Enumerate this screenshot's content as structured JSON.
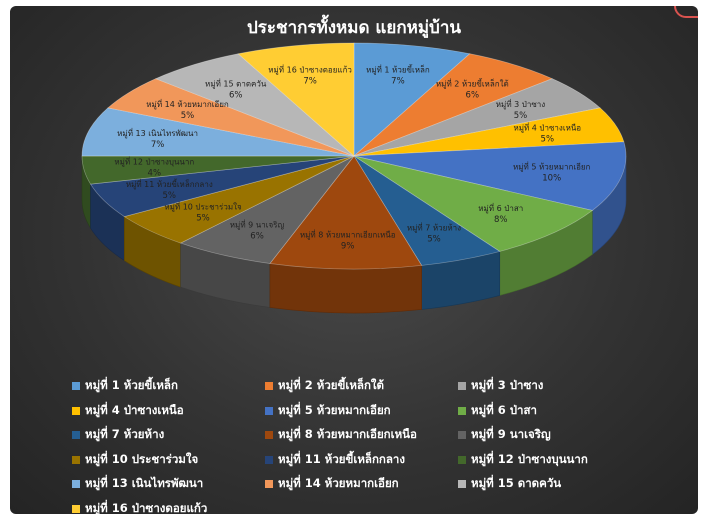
{
  "chart_data": {
    "type": "pie",
    "title": "ประชากรทั้งหมด  แยกหมู่บ้าน",
    "unit": "%",
    "legend_position": "bottom",
    "slices": [
      {
        "label": "หมู่ที่ 1 ห้วยขี้เหล็ก",
        "value": 7,
        "color": "#5b9bd5"
      },
      {
        "label": "หมู่ที่ 2 ห้วยขี้เหล็กใต้",
        "value": 6,
        "color": "#ed7d31"
      },
      {
        "label": "หมู่ที่ 3 ป่าซาง",
        "value": 5,
        "color": "#a5a5a5"
      },
      {
        "label": "หมู่ที่ 4 ป่าซางเหนือ",
        "value": 5,
        "color": "#ffc000"
      },
      {
        "label": "หมู่ที่ 5 ห้วยหมากเอียก",
        "value": 10,
        "color": "#4472c4"
      },
      {
        "label": "หมู่ที่ 6 ป่าสา",
        "value": 8,
        "color": "#70ad47"
      },
      {
        "label": "หมู่ที่ 7 ห้วยห้าง",
        "value": 5,
        "color": "#255e91"
      },
      {
        "label": "หมู่ที่ 8 ห้วยหมากเอียกเหนือ",
        "value": 9,
        "color": "#9e480e"
      },
      {
        "label": "หมู่ที่ 9 นาเจริญ",
        "value": 6,
        "color": "#636363"
      },
      {
        "label": "หมู่ที่ 10 ประชาร่วมใจ",
        "value": 5,
        "color": "#997300"
      },
      {
        "label": "หมู่ที่ 11 ห้วยขี้เหล็กกลาง",
        "value": 5,
        "color": "#264478"
      },
      {
        "label": "หมู่ที่ 12 ป่าซางบุนนาก",
        "value": 4,
        "color": "#43682b"
      },
      {
        "label": "หมู่ที่ 13 เนินไทรพัฒนา",
        "value": 7,
        "color": "#7cafdd"
      },
      {
        "label": "หมู่ที่ 14 ห้วยหมากเอียก",
        "value": 5,
        "color": "#f1975a"
      },
      {
        "label": "หมู่ที่ 15 ดาดควัน",
        "value": 6,
        "color": "#b7b7b7"
      },
      {
        "label": "หมู่ที่ 16 ป่าซางดอยแก้ว",
        "value": 7,
        "color": "#ffcd33"
      }
    ]
  }
}
